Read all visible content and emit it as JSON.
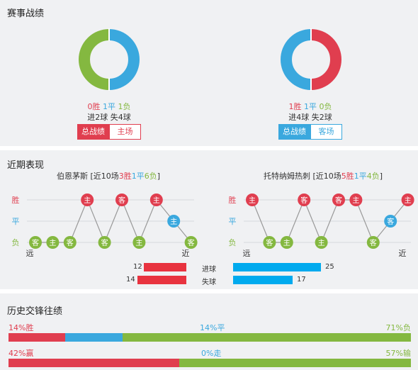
{
  "sections": {
    "record_title": "赛事战绩",
    "recent_title": "近期表现",
    "history_title": "历史交锋往绩"
  },
  "record": {
    "left": {
      "w_text": "0胜",
      "d_text": "1平",
      "l_text": "1负",
      "goals_text": "进2球  失4球",
      "donut": [
        {
          "value": 0,
          "color": "#e03e4f"
        },
        {
          "value": 1,
          "color": "#3aa8de"
        },
        {
          "value": 1,
          "color": "#84b840"
        }
      ],
      "btn_active": "总战绩",
      "btn_other": "主场",
      "accent": "#e03e4f"
    },
    "right": {
      "w_text": "1胜",
      "d_text": "1平",
      "l_text": "0负",
      "goals_text": "进4球  失2球",
      "donut": [
        {
          "value": 1,
          "color": "#e03e4f"
        },
        {
          "value": 1,
          "color": "#3aa8de"
        },
        {
          "value": 0,
          "color": "#84b840"
        }
      ],
      "btn_active": "总战绩",
      "btn_other": "客场",
      "accent": "#3aa8de"
    }
  },
  "recent": {
    "left": {
      "team": "伯恩茅斯",
      "summary_prefix": " [近10场",
      "w": "3胜",
      "d": "1平",
      "l": "6负",
      "summary_suffix": "]",
      "results": [
        {
          "r": "L",
          "loc": "客"
        },
        {
          "r": "L",
          "loc": "主"
        },
        {
          "r": "L",
          "loc": "客"
        },
        {
          "r": "W",
          "loc": "主"
        },
        {
          "r": "L",
          "loc": "客"
        },
        {
          "r": "W",
          "loc": "客"
        },
        {
          "r": "L",
          "loc": "主"
        },
        {
          "r": "W",
          "loc": "主"
        },
        {
          "r": "D",
          "loc": "主"
        },
        {
          "r": "L",
          "loc": "客"
        }
      ],
      "axis_w": "胜",
      "axis_d": "平",
      "axis_l": "负",
      "far": "远",
      "near": "近"
    },
    "right": {
      "team": "托特纳姆热刺",
      "summary_prefix": " [近10场",
      "w": "5胜",
      "d": "1平",
      "l": "4负",
      "summary_suffix": "]",
      "results": [
        {
          "r": "W",
          "loc": "主"
        },
        {
          "r": "L",
          "loc": "客"
        },
        {
          "r": "L",
          "loc": "主"
        },
        {
          "r": "W",
          "loc": "客"
        },
        {
          "r": "L",
          "loc": "主"
        },
        {
          "r": "W",
          "loc": "客"
        },
        {
          "r": "W",
          "loc": "主"
        },
        {
          "r": "L",
          "loc": "客"
        },
        {
          "r": "D",
          "loc": "客"
        },
        {
          "r": "W",
          "loc": "主"
        }
      ],
      "axis_w": "胜",
      "axis_d": "平",
      "axis_l": "负",
      "far": "远",
      "near": "近"
    },
    "goals": {
      "for_label": "进球",
      "against_label": "失球",
      "left_for": 12,
      "left_against": 14,
      "right_for": 25,
      "right_against": 17,
      "max": 25
    }
  },
  "history": {
    "row1": {
      "left": "14%胜",
      "mid": "14%平",
      "right": "71%负",
      "values": [
        14,
        14,
        71
      ]
    },
    "row2": {
      "left": "42%赢",
      "mid": "0%走",
      "right": "57%输",
      "values": [
        42,
        0,
        57
      ]
    }
  },
  "colors": {
    "win": "#e03e4f",
    "draw": "#3aa8de",
    "loss": "#84b840",
    "goals_left": "#e8333f",
    "goals_right": "#00aaee",
    "bar_track": "#dde1e6"
  }
}
